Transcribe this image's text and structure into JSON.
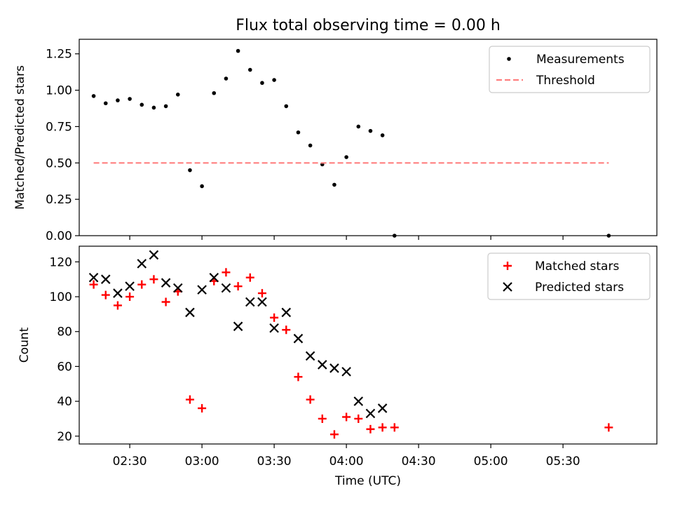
{
  "figure_title": "Flux total observing time = 0.00 h",
  "chart_data": [
    {
      "type": "scatter",
      "title": "Flux total observing time = 0.00 h",
      "xlabel": "",
      "ylabel": "Matched/Predicted stars",
      "ylim": [
        0,
        1.35
      ],
      "yticks": [
        0.0,
        0.25,
        0.5,
        0.75,
        1.0,
        1.25
      ],
      "ytick_labels": [
        "0.00",
        "0.25",
        "0.50",
        "0.75",
        "1.00",
        "1.25"
      ],
      "xlim": [
        "02:09",
        "06:09"
      ],
      "xticks": [
        "02:30",
        "03:00",
        "03:30",
        "04:00",
        "04:30",
        "05:00",
        "05:30"
      ],
      "legend_position": "top-right",
      "series": [
        {
          "name": "Measurements",
          "marker": "dot",
          "color": "#000000",
          "x": [
            "02:15",
            "02:20",
            "02:25",
            "02:30",
            "02:35",
            "02:40",
            "02:45",
            "02:50",
            "02:55",
            "03:00",
            "03:05",
            "03:10",
            "03:15",
            "03:20",
            "03:25",
            "03:30",
            "03:35",
            "03:40",
            "03:45",
            "03:50",
            "03:55",
            "04:00",
            "04:05",
            "04:10",
            "04:15",
            "04:20",
            "05:49"
          ],
          "y": [
            0.96,
            0.91,
            0.93,
            0.94,
            0.9,
            0.88,
            0.89,
            0.97,
            0.45,
            0.34,
            0.98,
            1.08,
            1.27,
            1.14,
            1.05,
            1.07,
            0.89,
            0.71,
            0.62,
            0.49,
            0.35,
            0.54,
            0.75,
            0.72,
            0.69,
            0.0,
            0.0
          ]
        },
        {
          "name": "Threshold",
          "style": "dashed",
          "color": "#ff7f7f",
          "x": [
            "02:15",
            "05:49"
          ],
          "y": [
            0.5,
            0.5
          ]
        }
      ]
    },
    {
      "type": "scatter",
      "xlabel": "Time (UTC)",
      "ylabel": "Count",
      "ylim": [
        15.5,
        129
      ],
      "yticks": [
        20,
        40,
        60,
        80,
        100,
        120
      ],
      "ytick_labels": [
        "20",
        "40",
        "60",
        "80",
        "100",
        "120"
      ],
      "xlim": [
        "02:09",
        "06:09"
      ],
      "xticks": [
        "02:30",
        "03:00",
        "03:30",
        "04:00",
        "04:30",
        "05:00",
        "05:30"
      ],
      "xtick_labels": [
        "02:30",
        "03:00",
        "03:30",
        "04:00",
        "04:30",
        "05:00",
        "05:30"
      ],
      "legend_position": "top-right",
      "series": [
        {
          "name": "Matched stars",
          "marker": "plus",
          "color": "#ff0000",
          "x": [
            "02:15",
            "02:20",
            "02:25",
            "02:30",
            "02:35",
            "02:40",
            "02:45",
            "02:50",
            "02:55",
            "03:00",
            "03:05",
            "03:10",
            "03:15",
            "03:20",
            "03:25",
            "03:30",
            "03:35",
            "03:40",
            "03:45",
            "03:50",
            "03:55",
            "04:00",
            "04:05",
            "04:10",
            "04:15",
            "04:20",
            "05:49"
          ],
          "y": [
            107,
            101,
            95,
            100,
            107,
            110,
            97,
            103,
            41,
            36,
            109,
            114,
            106,
            111,
            102,
            88,
            81,
            54,
            41,
            30,
            21,
            31,
            30,
            24,
            25,
            25,
            25
          ]
        },
        {
          "name": "Predicted stars",
          "marker": "x",
          "color": "#000000",
          "x": [
            "02:15",
            "02:20",
            "02:25",
            "02:30",
            "02:35",
            "02:40",
            "02:45",
            "02:50",
            "02:55",
            "03:00",
            "03:05",
            "03:10",
            "03:15",
            "03:20",
            "03:25",
            "03:30",
            "03:35",
            "03:40",
            "03:45",
            "03:50",
            "03:55",
            "04:00",
            "04:05",
            "04:10",
            "04:15"
          ],
          "y": [
            111,
            110,
            102,
            106,
            119,
            124,
            108,
            105,
            91,
            104,
            111,
            105,
            83,
            97,
            97,
            82,
            91,
            76,
            66,
            61,
            59,
            57,
            40,
            33,
            36
          ]
        }
      ]
    }
  ]
}
